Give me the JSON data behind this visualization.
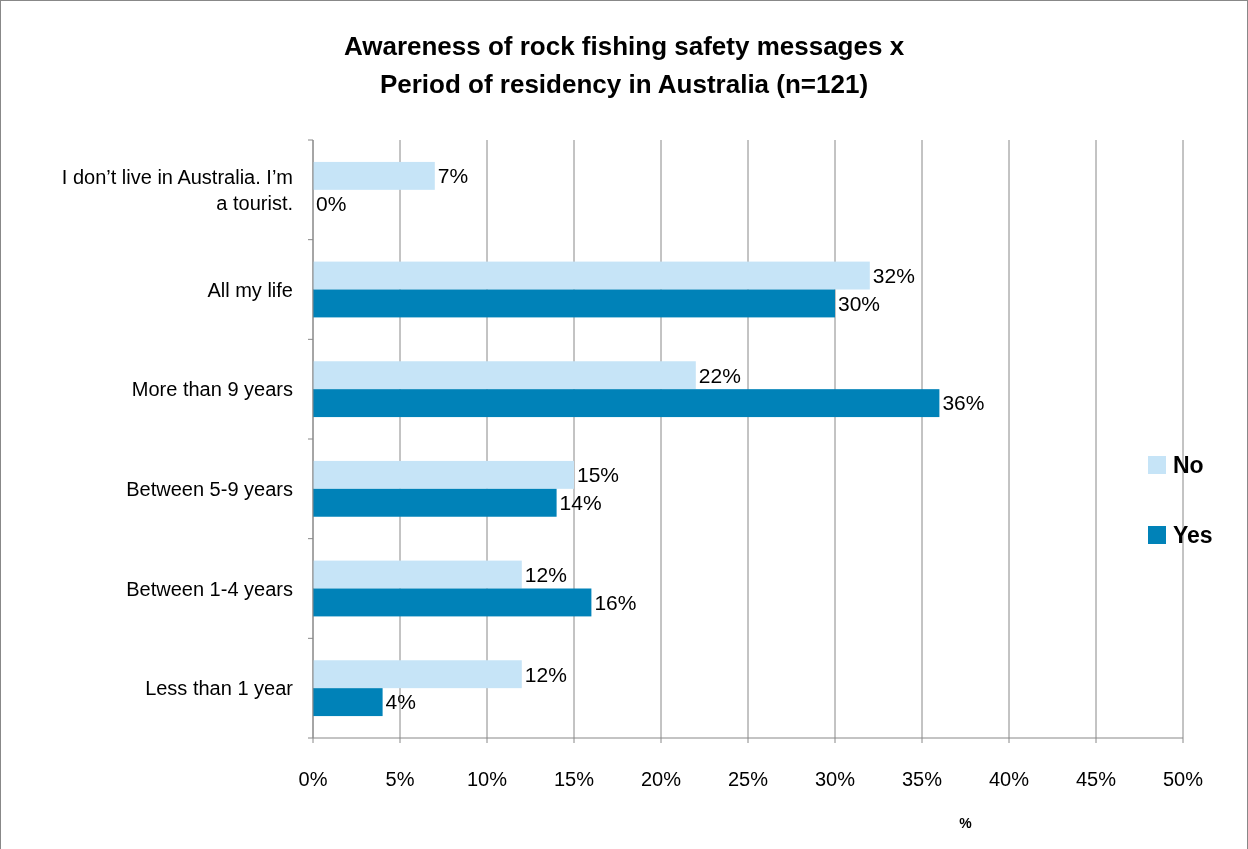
{
  "chart_data": {
    "type": "bar",
    "orientation": "horizontal",
    "title": "Awareness of rock fishing safety messages x Period of residency in Australia (n=121)",
    "xlabel": "%",
    "categories": [
      "I don’t live in Australia. I’m a tourist.",
      "All my life",
      "More than 9 years",
      "Between 5-9 years",
      "Between 1-4 years",
      "Less than 1 year"
    ],
    "series": [
      {
        "name": "No",
        "color": "#c6e4f7",
        "values": [
          7,
          32,
          22,
          15,
          12,
          12
        ],
        "value_labels": [
          "7%",
          "32%",
          "22%",
          "15%",
          "12%",
          "12%"
        ]
      },
      {
        "name": "Yes",
        "color": "#0082b8",
        "values": [
          0,
          30,
          36,
          14,
          16,
          4
        ],
        "value_labels": [
          "0%",
          "30%",
          "36%",
          "14%",
          "16%",
          "4%"
        ]
      }
    ],
    "xlim": [
      0,
      50
    ],
    "xticks": [
      {
        "value": 0,
        "label": "0%"
      },
      {
        "value": 5,
        "label": "5%"
      },
      {
        "value": 10,
        "label": "10%"
      },
      {
        "value": 15,
        "label": "15%"
      },
      {
        "value": 20,
        "label": "20%"
      },
      {
        "value": 25,
        "label": "25%"
      },
      {
        "value": 30,
        "label": "30%"
      },
      {
        "value": 35,
        "label": "35%"
      },
      {
        "value": 40,
        "label": "40%"
      },
      {
        "value": 45,
        "label": "45%"
      },
      {
        "value": 50,
        "label": "50%"
      }
    ],
    "grid": "x",
    "legend": "right"
  }
}
